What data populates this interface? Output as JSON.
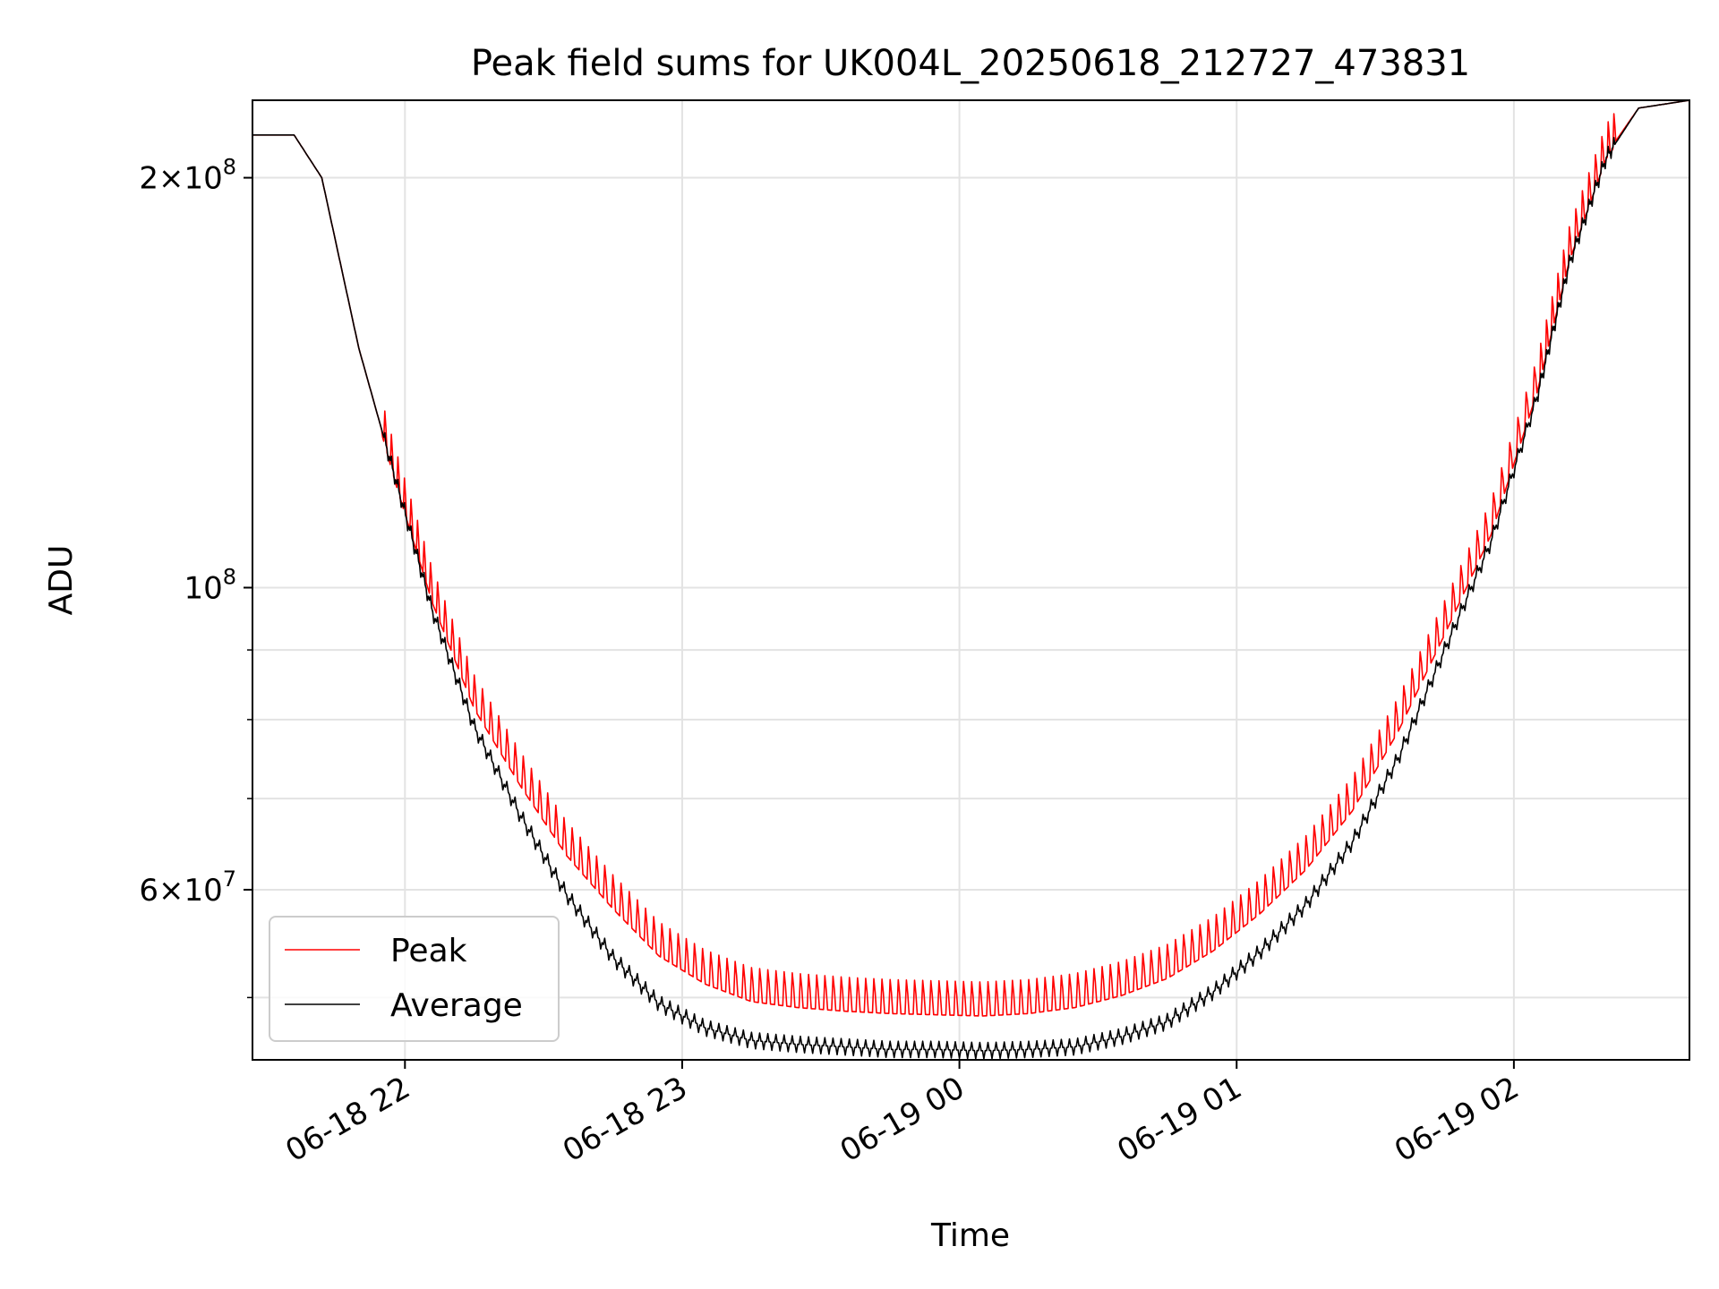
{
  "chart_data": {
    "type": "line",
    "title": "Peak field sums for UK004L_20250618_212727_473831",
    "xlabel": "Time",
    "ylabel": "ADU",
    "yscale": "log",
    "grid": true,
    "legend_position": "lower-left",
    "xlim": [
      "2025-06-18 21:27",
      "2025-06-19 02:38"
    ],
    "ylim": [
      45000000,
      228000000
    ],
    "x_ticks": [
      {
        "value": "2025-06-18 22:00",
        "label": "06-18 22"
      },
      {
        "value": "2025-06-18 23:00",
        "label": "06-18 23"
      },
      {
        "value": "2025-06-19 00:00",
        "label": "06-19 00"
      },
      {
        "value": "2025-06-19 01:00",
        "label": "06-19 01"
      },
      {
        "value": "2025-06-19 02:00",
        "label": "06-19 02"
      }
    ],
    "y_major_ticks": [
      {
        "value": 200000000,
        "base": "2",
        "exp": "8"
      },
      {
        "value": 100000000,
        "base": "",
        "exp": "8"
      },
      {
        "value": 60000000,
        "base": "6",
        "exp": "7"
      }
    ],
    "y_minor_ticks": [
      50000000,
      70000000,
      80000000,
      90000000
    ],
    "series": [
      {
        "name": "Peak",
        "color": "#ff0000",
        "x": [
          "2025-06-18 21:27",
          "2025-06-18 21:36",
          "2025-06-18 21:42",
          "2025-06-18 21:50",
          "2025-06-18 21:58",
          "2025-06-18 22:06",
          "2025-06-18 22:15",
          "2025-06-18 22:25",
          "2025-06-18 22:35",
          "2025-06-18 22:45",
          "2025-06-18 22:55",
          "2025-06-18 23:05",
          "2025-06-18 23:15",
          "2025-06-18 23:25",
          "2025-06-18 23:35",
          "2025-06-18 23:45",
          "2025-06-18 23:55",
          "2025-06-19 00:05",
          "2025-06-19 00:15",
          "2025-06-19 00:25",
          "2025-06-19 00:35",
          "2025-06-19 00:45",
          "2025-06-19 00:55",
          "2025-06-19 01:05",
          "2025-06-19 01:15",
          "2025-06-19 01:25",
          "2025-06-19 01:35",
          "2025-06-19 01:45",
          "2025-06-19 01:55",
          "2025-06-19 02:05",
          "2025-06-19 02:12",
          "2025-06-19 02:20",
          "2025-06-19 02:27",
          "2025-06-19 02:38"
        ],
        "values": [
          215000000,
          215000000,
          200000000,
          150000000,
          120000000,
          98000000,
          82000000,
          72000000,
          64000000,
          58500000,
          54000000,
          51500000,
          50000000,
          49500000,
          49200000,
          49000000,
          48900000,
          48800000,
          49000000,
          49500000,
          50500000,
          52000000,
          54500000,
          58000000,
          62500000,
          69000000,
          79000000,
          93000000,
          110000000,
          140000000,
          175000000,
          208000000,
          225000000,
          228000000
        ]
      },
      {
        "name": "Average",
        "color": "#000000",
        "x": [
          "2025-06-18 21:27",
          "2025-06-18 21:36",
          "2025-06-18 21:42",
          "2025-06-18 21:50",
          "2025-06-18 21:58",
          "2025-06-18 22:06",
          "2025-06-18 22:15",
          "2025-06-18 22:25",
          "2025-06-18 22:35",
          "2025-06-18 22:45",
          "2025-06-18 22:55",
          "2025-06-18 23:05",
          "2025-06-18 23:15",
          "2025-06-18 23:25",
          "2025-06-18 23:35",
          "2025-06-18 23:45",
          "2025-06-18 23:55",
          "2025-06-19 00:05",
          "2025-06-19 00:15",
          "2025-06-19 00:25",
          "2025-06-19 00:35",
          "2025-06-19 00:45",
          "2025-06-19 00:55",
          "2025-06-19 01:05",
          "2025-06-19 01:15",
          "2025-06-19 01:25",
          "2025-06-19 01:35",
          "2025-06-19 01:45",
          "2025-06-19 01:55",
          "2025-06-19 02:05",
          "2025-06-19 02:12",
          "2025-06-19 02:20",
          "2025-06-19 02:27",
          "2025-06-19 02:38"
        ],
        "values": [
          215000000,
          215000000,
          200000000,
          150000000,
          120000000,
          96000000,
          79000000,
          68000000,
          59500000,
          53500000,
          49500000,
          47500000,
          46500000,
          46200000,
          46000000,
          45800000,
          45800000,
          45700000,
          45800000,
          46000000,
          46800000,
          48000000,
          50500000,
          54000000,
          58500000,
          65000000,
          75000000,
          90000000,
          108000000,
          138000000,
          173000000,
          207000000,
          225000000,
          228000000
        ]
      }
    ]
  }
}
